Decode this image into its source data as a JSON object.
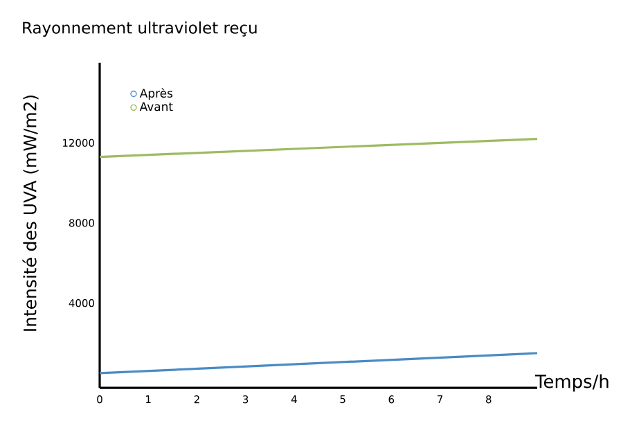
{
  "chart_data": {
    "type": "line",
    "title": "Rayonnement ultraviolet reçu",
    "xlabel": "Temps/h",
    "ylabel": "Intensité des UVA (mW/m2)",
    "x": [
      0,
      9
    ],
    "series": [
      {
        "name": "Après",
        "color": "#4a8bc4",
        "values": [
          500,
          1500
        ]
      },
      {
        "name": "Avant",
        "color": "#9dbb61",
        "values": [
          11300,
          12200
        ]
      }
    ],
    "xlim": [
      0,
      9
    ],
    "ylim": [
      -230,
      16000
    ],
    "xticks": [
      0,
      1,
      2,
      3,
      4,
      5,
      6,
      7,
      8
    ],
    "yticks": [
      4000,
      8000,
      12000
    ],
    "grid": false,
    "legend": "top left",
    "line_style": "solid"
  }
}
